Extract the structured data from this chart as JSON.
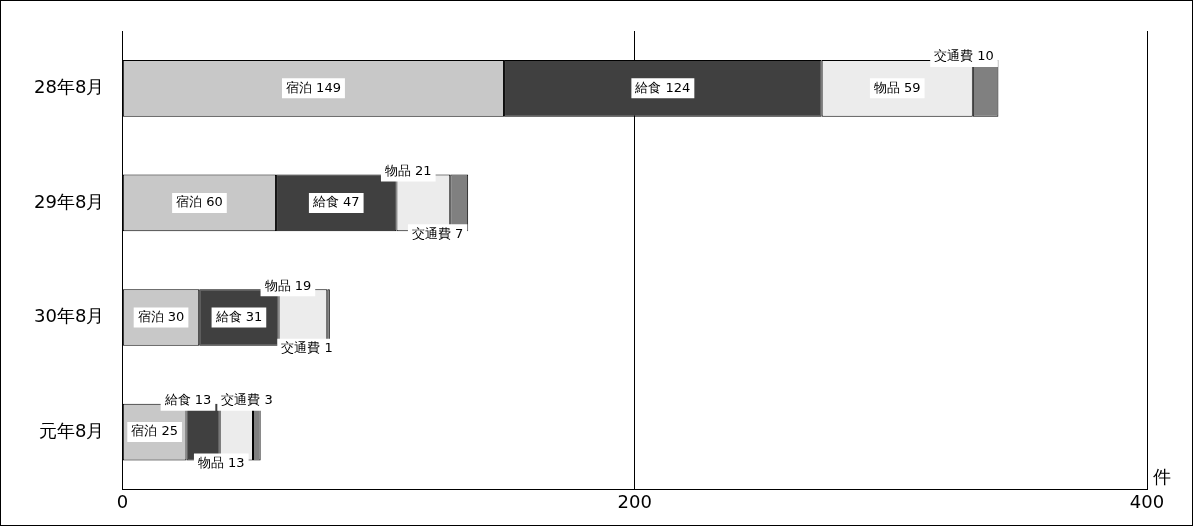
{
  "chart_data": {
    "type": "bar",
    "orientation": "horizontal",
    "stacked": true,
    "categories": [
      "28年8月",
      "29年8月",
      "30年8月",
      "元年8月"
    ],
    "series": [
      {
        "name": "宿泊",
        "color": "#c8c8c8",
        "values": [
          149,
          60,
          30,
          25
        ]
      },
      {
        "name": "給食",
        "color": "#404040",
        "values": [
          124,
          47,
          31,
          13
        ]
      },
      {
        "name": "物品",
        "color": "#ececec",
        "values": [
          59,
          21,
          19,
          13
        ]
      },
      {
        "name": "交通費",
        "color": "#808080",
        "values": [
          10,
          7,
          1,
          3
        ]
      }
    ],
    "xlim": [
      0,
      400
    ],
    "xticks": [
      0,
      200,
      400
    ],
    "xlabel": "件",
    "grid": "x",
    "data_labels": true,
    "legend": false
  }
}
